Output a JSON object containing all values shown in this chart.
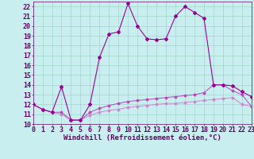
{
  "xlabel": "Windchill (Refroidissement éolien,°C)",
  "x": [
    0,
    1,
    2,
    3,
    4,
    5,
    6,
    7,
    8,
    9,
    10,
    11,
    12,
    13,
    14,
    15,
    16,
    17,
    18,
    19,
    20,
    21,
    22,
    23
  ],
  "line1_y": [
    12.0,
    11.5,
    11.2,
    13.8,
    10.4,
    10.4,
    12.0,
    16.8,
    19.2,
    19.4,
    22.3,
    20.0,
    18.7,
    18.6,
    18.7,
    21.0,
    22.0,
    21.4,
    20.8,
    14.0,
    14.0,
    13.9,
    13.3,
    12.8
  ],
  "line2_y": [
    12.0,
    11.5,
    11.2,
    11.2,
    10.4,
    10.4,
    11.2,
    11.6,
    11.9,
    12.1,
    12.3,
    12.4,
    12.5,
    12.6,
    12.7,
    12.8,
    12.9,
    13.0,
    13.2,
    14.0,
    14.0,
    13.4,
    13.0,
    11.8
  ],
  "line3_y": [
    12.0,
    11.5,
    11.2,
    11.0,
    10.4,
    10.4,
    10.9,
    11.2,
    11.4,
    11.5,
    11.7,
    11.8,
    11.9,
    12.0,
    12.1,
    12.1,
    12.2,
    12.3,
    12.4,
    12.5,
    12.6,
    12.7,
    12.0,
    11.8
  ],
  "line_color1": "#990099",
  "line_color2": "#bb44bb",
  "line_color3": "#cc88cc",
  "bg_color": "#c8eef0",
  "grid_color": "#a0d8c8",
  "text_color": "#660066",
  "ylim_min": 10,
  "ylim_max": 22.5,
  "xlim_min": 0,
  "xlim_max": 23,
  "yticks": [
    10,
    11,
    12,
    13,
    14,
    15,
    16,
    17,
    18,
    19,
    20,
    21,
    22
  ],
  "xticks": [
    0,
    1,
    2,
    3,
    4,
    5,
    6,
    7,
    8,
    9,
    10,
    11,
    12,
    13,
    14,
    15,
    16,
    17,
    18,
    19,
    20,
    21,
    22,
    23
  ],
  "xlabel_fontsize": 6.5,
  "tick_fontsize": 6
}
